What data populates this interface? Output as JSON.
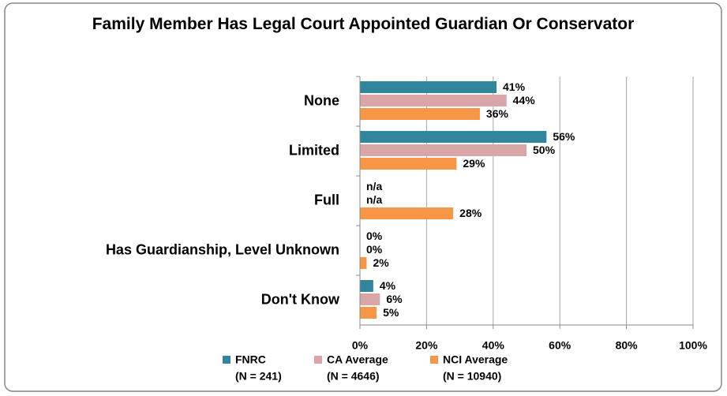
{
  "chart_data": {
    "type": "hbar",
    "title": "Family Member Has Legal Court Appointed Guardian Or Conservator",
    "categories": [
      "None",
      "Limited",
      "Full",
      "Has Guardianship,  Level Unknown",
      "Don't Know"
    ],
    "series": [
      {
        "name": "FNRC",
        "note": "(N = 241)",
        "color": "#31859c",
        "values": [
          41,
          56,
          null,
          0,
          4
        ],
        "value_labels": [
          "41%",
          "56%",
          "n/a",
          "0%",
          "4%"
        ]
      },
      {
        "name": "CA Average",
        "note": "(N = 4646)",
        "color": "#d9a5a6",
        "values": [
          44,
          50,
          null,
          0,
          6
        ],
        "value_labels": [
          "44%",
          "50%",
          "n/a",
          "0%",
          "6%"
        ]
      },
      {
        "name": "NCI Average",
        "note": "(N = 10940)",
        "color": "#f79646",
        "values": [
          36,
          29,
          28,
          2,
          5
        ],
        "value_labels": [
          "36%",
          "29%",
          "28%",
          "2%",
          "5%"
        ]
      }
    ],
    "xlim": [
      0,
      100
    ],
    "xticks": [
      {
        "value": 0,
        "label": "0%"
      },
      {
        "value": 20,
        "label": "20%"
      },
      {
        "value": 40,
        "label": "40%"
      },
      {
        "value": 60,
        "label": "60%"
      },
      {
        "value": 80,
        "label": "80%"
      },
      {
        "value": 100,
        "label": "100%"
      }
    ],
    "grid": true
  }
}
